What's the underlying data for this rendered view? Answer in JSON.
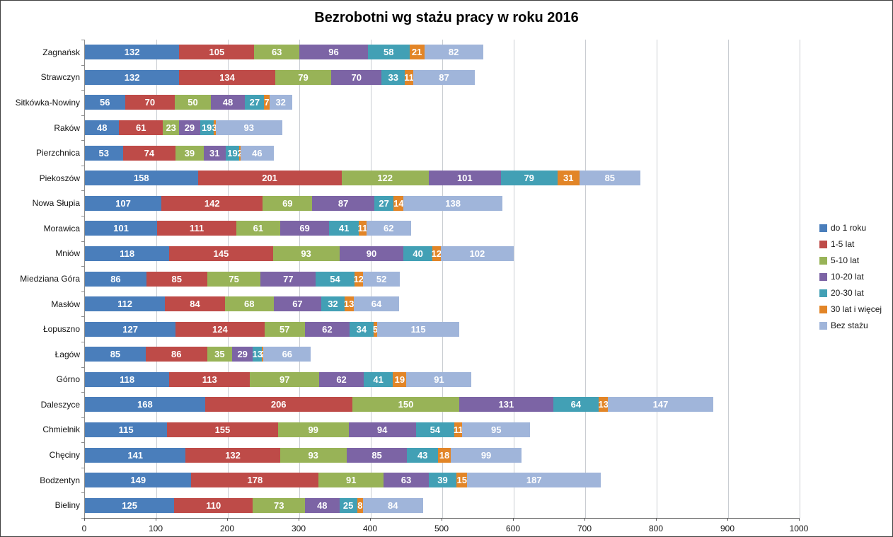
{
  "chart_data": {
    "type": "bar",
    "orientation": "horizontal",
    "stacked": true,
    "title": "Bezrobotni wg stażu pracy w roku 2016",
    "xlabel": "",
    "ylabel": "",
    "xlim": [
      0,
      1000
    ],
    "xticks": [
      0,
      100,
      200,
      300,
      400,
      500,
      600,
      700,
      800,
      900,
      1000
    ],
    "grid": "vertical",
    "legend_position": "right",
    "data_labels": "inside, white bold",
    "categories": [
      "Zagnańsk",
      "Strawczyn",
      "Sitkówka-Nowiny",
      "Raków",
      "Pierzchnica",
      "Piekoszów",
      "Nowa Słupia",
      "Morawica",
      "Mniów",
      "Miedziana Góra",
      "Masłów",
      "Łopuszno",
      "Łagów",
      "Górno",
      "Daleszyce",
      "Chmielnik",
      "Chęciny",
      "Bodzentyn",
      "Bieliny"
    ],
    "series": [
      {
        "name": "do 1 roku",
        "color": "#4a7ebb",
        "values": [
          132,
          132,
          56,
          48,
          53,
          158,
          107,
          101,
          118,
          86,
          112,
          127,
          85,
          118,
          168,
          115,
          141,
          149,
          125
        ]
      },
      {
        "name": "1-5 lat",
        "color": "#be4b48",
        "values": [
          105,
          134,
          70,
          61,
          74,
          201,
          142,
          111,
          145,
          85,
          84,
          124,
          86,
          113,
          206,
          155,
          132,
          178,
          110
        ]
      },
      {
        "name": "5-10 lat",
        "color": "#98b357",
        "values": [
          63,
          79,
          50,
          23,
          39,
          122,
          69,
          61,
          93,
          75,
          68,
          57,
          35,
          97,
          150,
          99,
          93,
          91,
          73
        ]
      },
      {
        "name": "10-20 lat",
        "color": "#7c64a5",
        "values": [
          96,
          70,
          48,
          29,
          31,
          101,
          87,
          69,
          90,
          77,
          67,
          62,
          29,
          62,
          131,
          94,
          85,
          63,
          48
        ]
      },
      {
        "name": "20-30 lat",
        "color": "#42a0b5",
        "values": [
          58,
          33,
          27,
          19,
          19,
          79,
          27,
          41,
          40,
          54,
          32,
          34,
          13,
          41,
          64,
          54,
          43,
          39,
          25
        ]
      },
      {
        "name": "30 lat i więcej",
        "color": "#e28527",
        "values": [
          21,
          11,
          7,
          3,
          2,
          31,
          14,
          11,
          12,
          12,
          13,
          5,
          2,
          19,
          13,
          11,
          18,
          15,
          8
        ]
      },
      {
        "name": "Bez stażu",
        "color": "#a0b5da",
        "values": [
          82,
          87,
          32,
          93,
          46,
          85,
          138,
          62,
          102,
          52,
          64,
          115,
          66,
          91,
          147,
          95,
          99,
          187,
          84
        ]
      }
    ]
  },
  "colors": {
    "background": "#ffffff",
    "frame_border": "#3f3f3f",
    "gridline": "#c9cdd2",
    "axis_line": "#595959",
    "bar_label_text": "#ffffff",
    "axis_text": "#141414"
  }
}
